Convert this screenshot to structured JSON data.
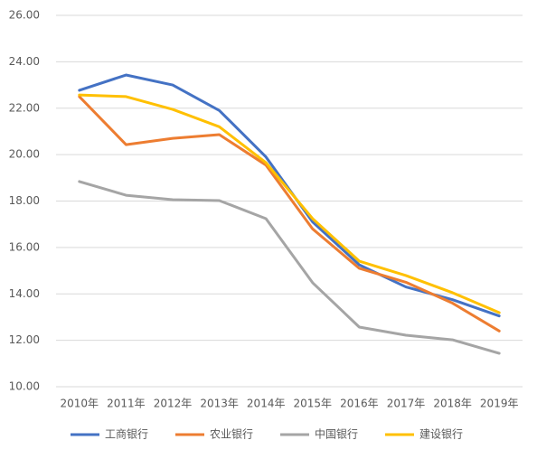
{
  "chart_data": {
    "type": "line",
    "categories": [
      "2010年",
      "2011年",
      "2012年",
      "2013年",
      "2014年",
      "2015年",
      "2016年",
      "2017年",
      "2018年",
      "2019年"
    ],
    "series": [
      {
        "name": "工商银行",
        "color": "#4472c4",
        "values": [
          22.77,
          23.43,
          23.0,
          21.9,
          19.9,
          17.1,
          15.25,
          14.3,
          13.75,
          13.05
        ]
      },
      {
        "name": "农业银行",
        "color": "#ed7d31",
        "values": [
          22.5,
          20.43,
          20.7,
          20.86,
          19.55,
          16.8,
          15.1,
          14.5,
          13.6,
          12.4
        ]
      },
      {
        "name": "中国银行",
        "color": "#a5a5a5",
        "values": [
          18.84,
          18.25,
          18.06,
          18.02,
          17.24,
          14.48,
          12.57,
          12.22,
          12.02,
          11.44
        ]
      },
      {
        "name": "建设银行",
        "color": "#ffc000",
        "values": [
          22.57,
          22.5,
          21.95,
          21.2,
          19.65,
          17.24,
          15.41,
          14.79,
          14.05,
          13.19
        ]
      }
    ],
    "ylim": [
      10,
      26
    ],
    "yticks": [
      {
        "value": 10,
        "label": "10.00"
      },
      {
        "value": 12,
        "label": "12.00"
      },
      {
        "value": 14,
        "label": "14.00"
      },
      {
        "value": 16,
        "label": "16.00"
      },
      {
        "value": 18,
        "label": "18.00"
      },
      {
        "value": 20,
        "label": "20.00"
      },
      {
        "value": 22,
        "label": "22.00"
      },
      {
        "value": 24,
        "label": "24.00"
      },
      {
        "value": 26,
        "label": "26.00"
      }
    ],
    "grid": true,
    "legend": "bottom"
  }
}
